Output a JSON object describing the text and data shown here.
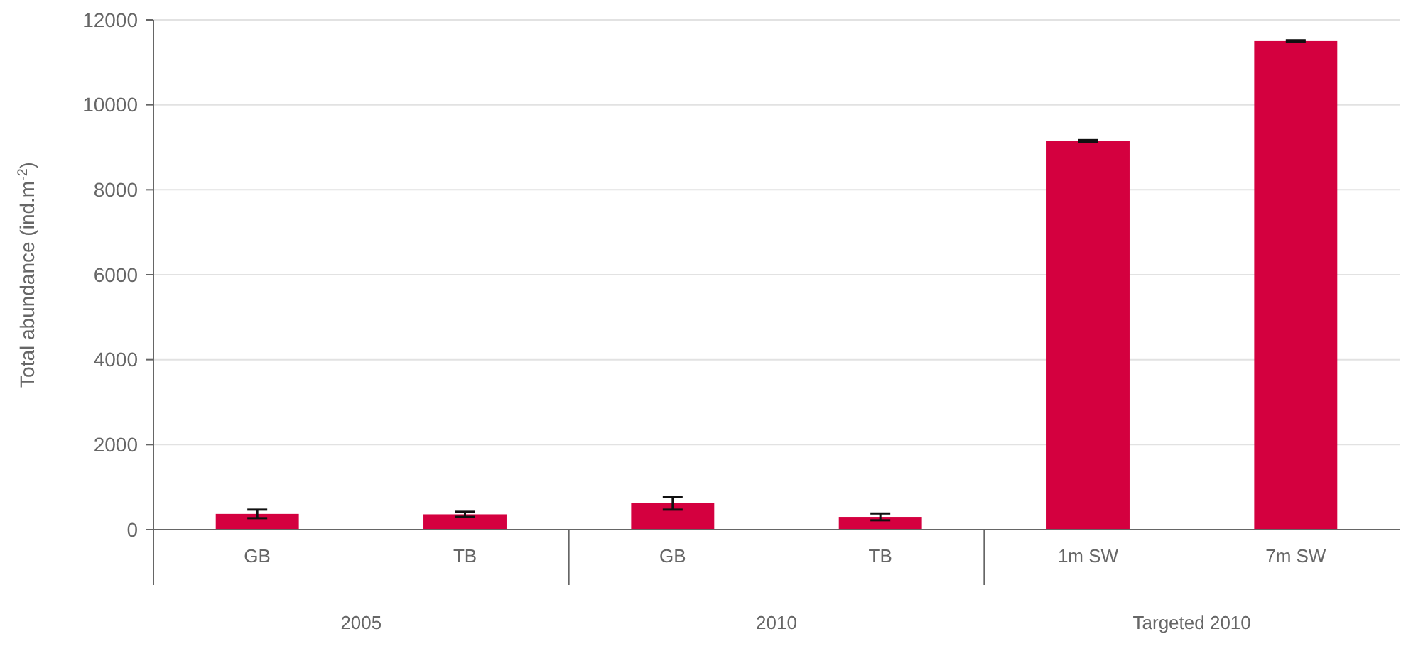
{
  "chart_data": {
    "type": "bar",
    "ylabel": "Total abundance (ind.m$^{-2}$)",
    "categories": [
      "GB",
      "TB",
      "GB",
      "TB",
      "1m SW",
      "7m SW"
    ],
    "values": [
      370,
      360,
      620,
      300,
      9150,
      11500
    ],
    "errors": [
      100,
      60,
      150,
      80,
      20,
      20
    ],
    "color": "#d4003f",
    "ylim": [
      0,
      12000
    ],
    "yticks": [
      0,
      2000,
      4000,
      6000,
      8000,
      10000,
      12000
    ],
    "grid": "y",
    "annotations": [
      "2005",
      "2010",
      "Targeted 2010"
    ]
  }
}
